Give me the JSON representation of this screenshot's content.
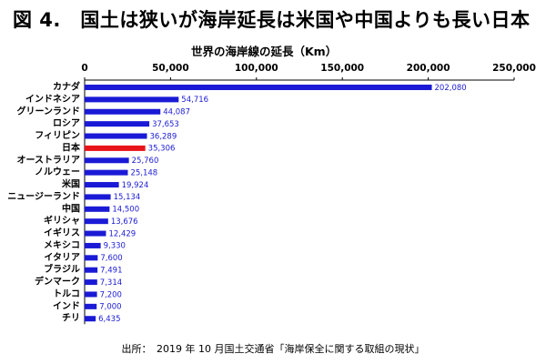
{
  "figure_title": "図 4.　国土は狭いが海岸延長は米国や中国よりも長い日本",
  "source": "出所：　2019 年 10 月国土交通省「海岸保全に関する取組の現状」",
  "colors": {
    "bar": "#1a1ad6",
    "highlight": "#e8141a",
    "axis": "#000000"
  },
  "chart_data": {
    "type": "bar",
    "orientation": "horizontal",
    "title": "世界の海岸線の延長（Km）",
    "xlim": [
      0,
      250000
    ],
    "xticks": [
      0,
      50000,
      100000,
      150000,
      200000,
      250000
    ],
    "xtick_labels": [
      "0",
      "50,000",
      "100,000",
      "150,000",
      "200,000",
      "250,000"
    ],
    "xaxis_position": "top",
    "categories": [
      "カナダ",
      "インドネシア",
      "グリーンランド",
      "ロシア",
      "フィリピン",
      "日本",
      "オーストラリア",
      "ノルウェー",
      "米国",
      "ニュージーランド",
      "中国",
      "ギリシャ",
      "イギリス",
      "メキシコ",
      "イタリア",
      "ブラジル",
      "デンマーク",
      "トルコ",
      "インド",
      "チリ"
    ],
    "values": [
      202080,
      54716,
      44087,
      37653,
      36289,
      35306,
      25760,
      25148,
      19924,
      15134,
      14500,
      13676,
      12429,
      9330,
      7600,
      7491,
      7314,
      7200,
      7000,
      6435
    ],
    "value_labels": [
      "202,080",
      "54,716",
      "44,087",
      "37,653",
      "36,289",
      "35,306",
      "25,760",
      "25,148",
      "19,924",
      "15,134",
      "14,500",
      "13,676",
      "12,429",
      "9,330",
      "7,600",
      "7,491",
      "7,314",
      "7,200",
      "7,000",
      "6,435"
    ],
    "highlight_category": "日本"
  }
}
